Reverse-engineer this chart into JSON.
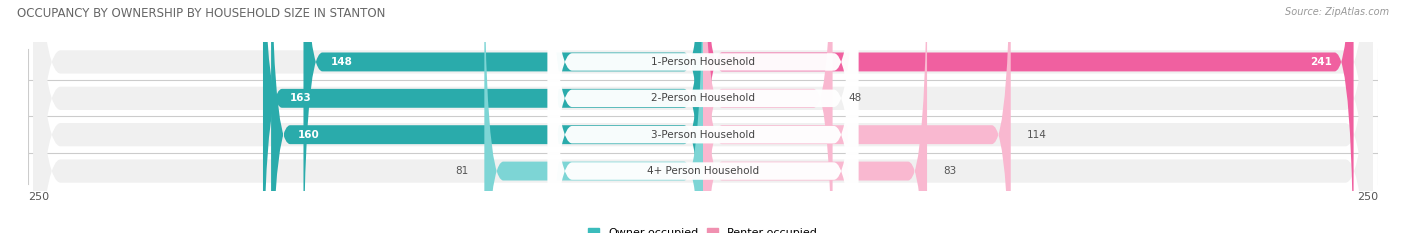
{
  "title": "OCCUPANCY BY OWNERSHIP BY HOUSEHOLD SIZE IN STANTON",
  "source": "Source: ZipAtlas.com",
  "categories": [
    "1-Person Household",
    "2-Person Household",
    "3-Person Household",
    "4+ Person Household"
  ],
  "owner_values": [
    148,
    163,
    160,
    81
  ],
  "renter_values": [
    241,
    48,
    114,
    83
  ],
  "max_val": 250,
  "owner_color_dark": "#2AABAB",
  "owner_color_light": "#7DD5D5",
  "renter_color_dark": "#F060A0",
  "renter_color_light": "#F9B8D0",
  "bg_color": "#ffffff",
  "bar_bg_color": "#e8e8e8",
  "row_bg_color": "#f0f0f0",
  "legend_owner_color": "#3BBCBC",
  "legend_renter_color": "#F090B0",
  "title_color": "#666666",
  "source_color": "#999999",
  "value_text_dark": "#555555",
  "value_text_white": "#ffffff"
}
